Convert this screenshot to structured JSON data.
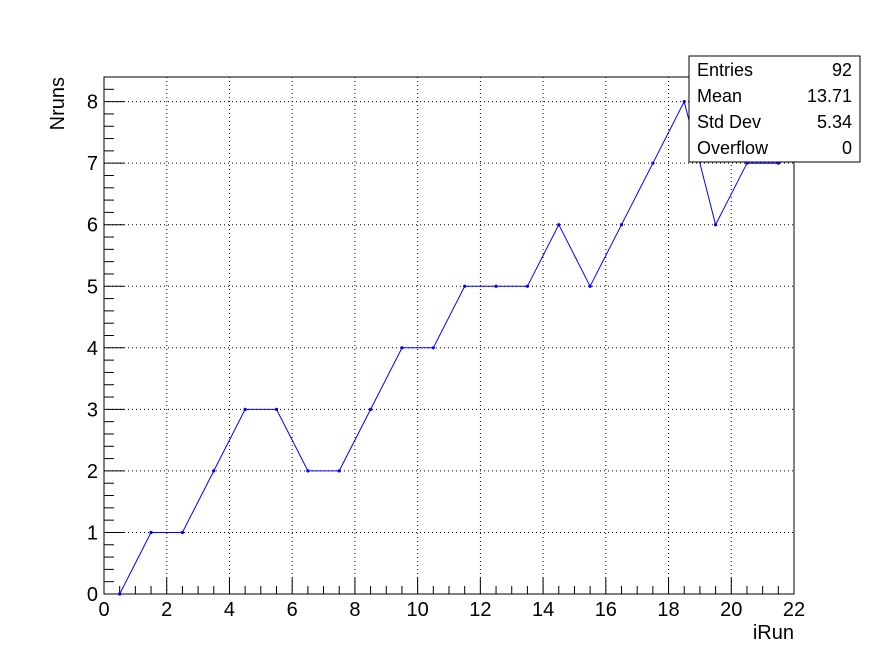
{
  "chart_data": {
    "type": "line",
    "title": "",
    "xlabel": "iRun",
    "ylabel": "Nruns",
    "xlim": [
      0,
      22
    ],
    "ylim": [
      0,
      8.4
    ],
    "x_ticks": [
      "0",
      "2",
      "4",
      "6",
      "8",
      "10",
      "12",
      "14",
      "16",
      "18",
      "20",
      "22"
    ],
    "y_ticks": [
      "0",
      "1",
      "2",
      "3",
      "4",
      "5",
      "6",
      "7",
      "8"
    ],
    "grid": true,
    "series": [
      {
        "color": "#0000ff",
        "x": [
          0.5,
          1.5,
          2.5,
          3.5,
          4.5,
          5.5,
          6.5,
          7.5,
          8.5,
          9.5,
          10.5,
          11.5,
          12.5,
          13.5,
          14.5,
          15.5,
          16.5,
          17.5,
          18.5,
          19.5,
          20.5,
          21.5
        ],
        "values": [
          0,
          1,
          1,
          2,
          3,
          3,
          2,
          2,
          3,
          4,
          4,
          5,
          5,
          5,
          6,
          5,
          6,
          7,
          8,
          6,
          7,
          7
        ]
      }
    ]
  },
  "stats": {
    "rows": [
      {
        "label": "Entries",
        "value": "92"
      },
      {
        "label": "Mean",
        "value": "13.71"
      },
      {
        "label": "Std Dev",
        "value": "5.34"
      },
      {
        "label": "Overflow",
        "value": "0"
      }
    ]
  }
}
